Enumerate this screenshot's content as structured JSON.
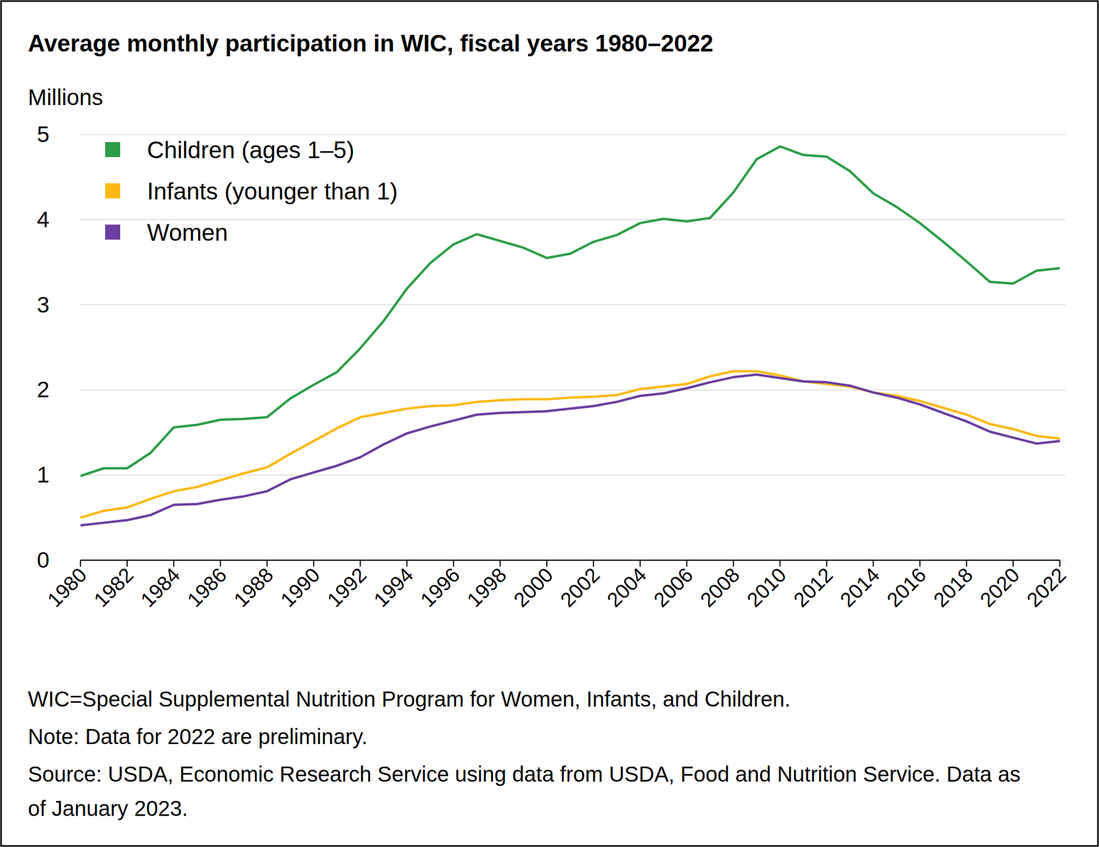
{
  "chart_data": {
    "type": "line",
    "title": "Average monthly participation in WIC, fiscal years 1980–2022",
    "y_label": "Millions",
    "x": [
      1980,
      1981,
      1982,
      1983,
      1984,
      1985,
      1986,
      1987,
      1988,
      1989,
      1990,
      1991,
      1992,
      1993,
      1994,
      1995,
      1996,
      1997,
      1998,
      1999,
      2000,
      2001,
      2002,
      2003,
      2004,
      2005,
      2006,
      2007,
      2008,
      2009,
      2010,
      2011,
      2012,
      2013,
      2014,
      2015,
      2016,
      2017,
      2018,
      2019,
      2020,
      2021,
      2022
    ],
    "series": [
      {
        "name": "Children (ages 1–5)",
        "color": "#2e9e48",
        "values": [
          0.99,
          1.08,
          1.08,
          1.26,
          1.56,
          1.59,
          1.65,
          1.66,
          1.68,
          1.9,
          2.06,
          2.21,
          2.49,
          2.81,
          3.19,
          3.49,
          3.71,
          3.83,
          3.75,
          3.67,
          3.55,
          3.6,
          3.74,
          3.82,
          3.96,
          4.01,
          3.98,
          4.02,
          4.32,
          4.71,
          4.86,
          4.76,
          4.74,
          4.57,
          4.31,
          4.15,
          3.96,
          3.74,
          3.51,
          3.27,
          3.25,
          3.4,
          3.43
        ]
      },
      {
        "name": "Infants (younger than 1)",
        "color": "#fdb913",
        "values": [
          0.5,
          0.58,
          0.62,
          0.72,
          0.81,
          0.86,
          0.94,
          1.02,
          1.09,
          1.25,
          1.4,
          1.55,
          1.68,
          1.73,
          1.78,
          1.81,
          1.82,
          1.86,
          1.88,
          1.89,
          1.89,
          1.91,
          1.92,
          1.94,
          2.01,
          2.04,
          2.07,
          2.16,
          2.22,
          2.22,
          2.17,
          2.1,
          2.07,
          2.04,
          1.97,
          1.93,
          1.87,
          1.79,
          1.71,
          1.6,
          1.54,
          1.46,
          1.43
        ]
      },
      {
        "name": "Women",
        "color": "#6b3fa0",
        "values": [
          0.41,
          0.44,
          0.47,
          0.53,
          0.65,
          0.66,
          0.71,
          0.75,
          0.81,
          0.95,
          1.03,
          1.11,
          1.21,
          1.36,
          1.49,
          1.57,
          1.64,
          1.71,
          1.73,
          1.74,
          1.75,
          1.78,
          1.81,
          1.86,
          1.93,
          1.96,
          2.02,
          2.09,
          2.15,
          2.18,
          2.14,
          2.1,
          2.09,
          2.05,
          1.97,
          1.91,
          1.83,
          1.73,
          1.63,
          1.51,
          1.44,
          1.37,
          1.4
        ]
      }
    ],
    "xlim": [
      1980,
      2022
    ],
    "xticks": [
      1980,
      1982,
      1984,
      1986,
      1988,
      1990,
      1992,
      1994,
      1996,
      1998,
      2000,
      2002,
      2004,
      2006,
      2008,
      2010,
      2012,
      2014,
      2016,
      2018,
      2020,
      2022
    ],
    "ylim": [
      0,
      5
    ],
    "yticks": [
      0,
      1,
      2,
      3,
      4,
      5
    ],
    "grid": true,
    "legend": "top-left",
    "footnotes": [
      "WIC=Special Supplemental Nutrition Program for Women, Infants, and Children.",
      "Note: Data for 2022 are preliminary.",
      "Source: USDA, Economic Research Service using data from USDA, Food and Nutrition Service. Data as of January 2023."
    ]
  }
}
